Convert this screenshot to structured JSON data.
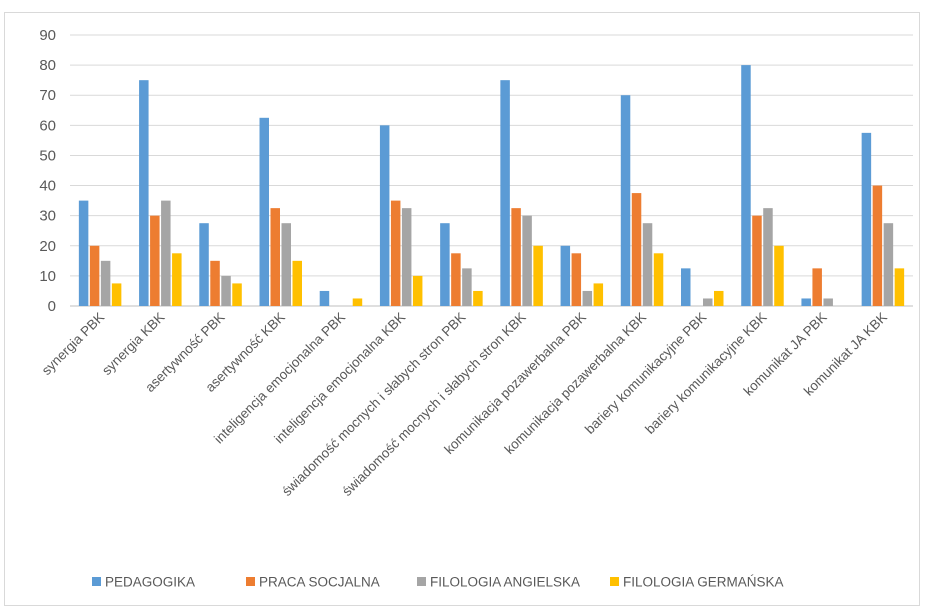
{
  "chart_data": {
    "type": "bar",
    "categories": [
      "synergia PBK",
      "synergia KBK",
      "asertywność PBK",
      "asertywność KBK",
      "inteligencja emocjonalna PBK",
      "inteligencja emocjonalna KBK",
      "świadomość mocnych i słabych stron PBK",
      "świadomość mocnych i słabych stron KBK",
      "komunikacja pozawerbalna PBK",
      "komunikacja pozawerbalna KBK",
      "bariery komunikacyjne PBK",
      "bariery komunikacyjne KBK",
      "komunikat JA PBK",
      "komunikat JA KBK"
    ],
    "series": [
      {
        "name": "PEDAGOGIKA",
        "color": "#5b9bd5",
        "values": [
          35,
          75,
          27.5,
          62.5,
          5,
          60,
          27.5,
          75,
          20,
          70,
          12.5,
          80,
          2.5,
          57.5
        ]
      },
      {
        "name": "PRACA SOCJALNA",
        "color": "#ed7d31",
        "values": [
          20,
          30,
          15,
          32.5,
          0,
          35,
          17.5,
          32.5,
          17.5,
          37.5,
          0,
          30,
          12.5,
          40
        ]
      },
      {
        "name": "FILOLOGIA ANGIELSKA",
        "color": "#a5a5a5",
        "values": [
          15,
          35,
          10,
          27.5,
          0,
          32.5,
          12.5,
          30,
          5,
          27.5,
          2.5,
          32.5,
          2.5,
          27.5
        ]
      },
      {
        "name": "FILOLOGIA GERMAŃSKA",
        "color": "#ffc000",
        "values": [
          7.5,
          17.5,
          7.5,
          15,
          2.5,
          10,
          5,
          20,
          7.5,
          17.5,
          5,
          20,
          0,
          12.5
        ]
      }
    ],
    "yticks": [
      "0",
      "10",
      "20",
      "30",
      "40",
      "50",
      "60",
      "70",
      "80",
      "90"
    ],
    "ylim": [
      0,
      90
    ],
    "grid": true,
    "legend_position": "bottom"
  }
}
